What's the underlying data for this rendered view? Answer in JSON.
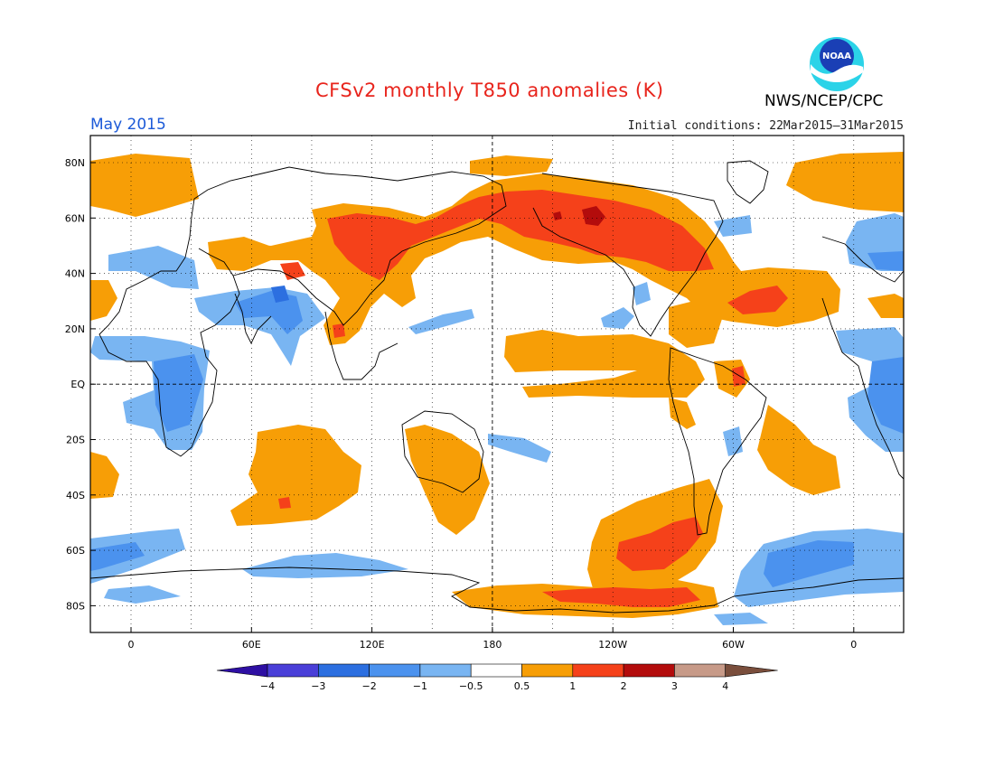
{
  "header": {
    "title": "CFSv2 monthly T850 anomalies (K)",
    "organization": "NWS/NCEP/CPC",
    "logo_text": "NOAA",
    "period": "May 2015",
    "initial_conditions": "Initial conditions: 22Mar2015–31Mar2015"
  },
  "map": {
    "lat_labels": [
      "80N",
      "60N",
      "40N",
      "20N",
      "EQ",
      "20S",
      "40S",
      "60S",
      "80S"
    ],
    "lon_labels": [
      "0",
      "60E",
      "120E",
      "180",
      "120W",
      "60W",
      "0"
    ],
    "grid": "dotted",
    "reference_lines": [
      "EQ",
      "180"
    ]
  },
  "legend": {
    "tick_labels": [
      "−4",
      "−3",
      "−2",
      "−1",
      "−0.5",
      "0.5",
      "1",
      "2",
      "3",
      "4"
    ],
    "colors": [
      "#2e0fa3",
      "#4a3fd8",
      "#2c6fe0",
      "#4b92ee",
      "#79b5f2",
      "#ffffff",
      "#f79e06",
      "#f5411a",
      "#b30c0c",
      "#c79a88",
      "#7a4e3c"
    ]
  },
  "colors": {
    "warm_1": "#f79e06",
    "warm_2": "#f5411a",
    "warm_3": "#b30c0c",
    "cool_1": "#79b5f2",
    "cool_2": "#4b92ee",
    "cool_3": "#2c6fe0",
    "title_red": "#e8241c",
    "period_blue": "#1c5ad8"
  }
}
